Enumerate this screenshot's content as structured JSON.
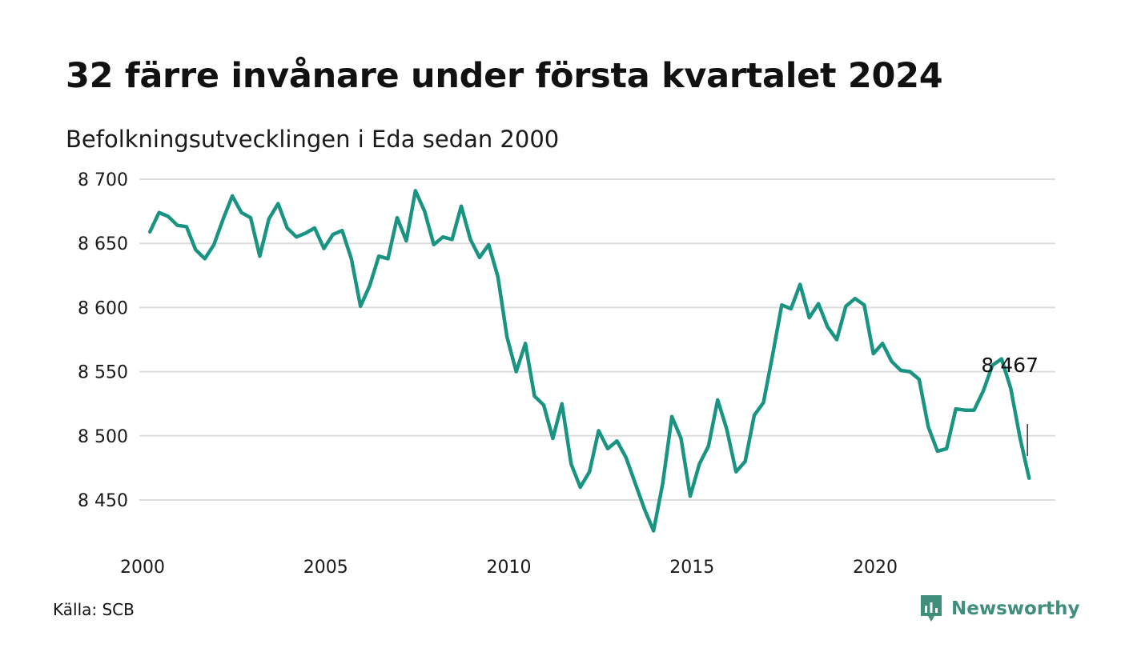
{
  "header": {
    "title": "32 färre invånare under första kvartalet 2024",
    "subtitle": "Befolkningsutvecklingen i Eda sedan 2000"
  },
  "footer": {
    "source": "Källa: SCB",
    "brand": "Newsworthy",
    "brand_icon": "newsworthy-logo-icon"
  },
  "colors": {
    "line": "#1a9482",
    "grid": "#dddddd",
    "brand": "#3f8f7c"
  },
  "chart_data": {
    "type": "line",
    "title": "32 färre invånare under första kvartalet 2024",
    "subtitle": "Befolkningsutvecklingen i Eda sedan 2000",
    "xlabel": "",
    "ylabel": "",
    "xlim": [
      2000,
      2024.3
    ],
    "ylim": [
      8420,
      8700
    ],
    "grid": true,
    "legend": "none",
    "x_ticks": [
      2000,
      2005,
      2010,
      2015,
      2020
    ],
    "x_tick_labels": [
      "2000",
      "2005",
      "2010",
      "2015",
      "2020"
    ],
    "y_ticks": [
      8450,
      8500,
      8550,
      8600,
      8650,
      8700
    ],
    "y_tick_labels": [
      "8 450",
      "8 500",
      "8 550",
      "8 600",
      "8 650",
      "8 700"
    ],
    "series": [
      {
        "color": "#1a9482",
        "x": [
          2000.2,
          2000.45,
          2000.7,
          2000.95,
          2001.2,
          2001.45,
          2001.7,
          2001.95,
          2002.2,
          2002.45,
          2002.7,
          2002.95,
          2003.2,
          2003.45,
          2003.7,
          2003.95,
          2004.2,
          2004.45,
          2004.7,
          2004.95,
          2005.2,
          2005.45,
          2005.7,
          2005.95,
          2006.2,
          2006.45,
          2006.7,
          2006.95,
          2007.2,
          2007.45,
          2007.7,
          2007.95,
          2008.2,
          2008.45,
          2008.7,
          2008.95,
          2009.2,
          2009.45,
          2009.7,
          2009.95,
          2010.2,
          2010.45,
          2010.7,
          2010.95,
          2011.2,
          2011.45,
          2011.7,
          2011.95,
          2012.2,
          2012.45,
          2012.7,
          2012.95,
          2013.2,
          2013.45,
          2013.7,
          2013.95,
          2014.2,
          2014.45,
          2014.7,
          2014.95,
          2015.2,
          2015.45,
          2015.7,
          2015.95,
          2016.2,
          2016.45,
          2016.7,
          2016.95,
          2017.2,
          2017.45,
          2017.7,
          2017.95,
          2018.2,
          2018.45,
          2018.7,
          2018.95,
          2019.2,
          2019.45,
          2019.7,
          2019.95,
          2020.2,
          2020.45,
          2020.7,
          2020.95,
          2021.2,
          2021.45,
          2021.7,
          2021.95,
          2022.2,
          2022.45,
          2022.7,
          2022.95,
          2023.2,
          2023.45,
          2023.7,
          2023.95,
          2024.2
        ],
        "y": [
          8659,
          8674,
          8671,
          8664,
          8663,
          8645,
          8638,
          8649,
          8669,
          8687,
          8674,
          8670,
          8640,
          8669,
          8681,
          8662,
          8655,
          8658,
          8662,
          8646,
          8657,
          8660,
          8638,
          8601,
          8617,
          8640,
          8638,
          8670,
          8652,
          8691,
          8675,
          8649,
          8655,
          8653,
          8679,
          8653,
          8639,
          8649,
          8624,
          8577,
          8550,
          8572,
          8531,
          8524,
          8498,
          8525,
          8478,
          8460,
          8472,
          8504,
          8490,
          8496,
          8483,
          8463,
          8443,
          8426,
          8463,
          8515,
          8498,
          8453,
          8478,
          8492,
          8528,
          8505,
          8472,
          8480,
          8516,
          8526,
          8563,
          8602,
          8599,
          8618,
          8592,
          8603,
          8585,
          8575,
          8601,
          8607,
          8602,
          8564,
          8572,
          8558,
          8551,
          8550,
          8544,
          8507,
          8488,
          8490,
          8521,
          8520,
          8520,
          8535,
          8555,
          8560,
          8537,
          8499,
          8467
        ]
      }
    ],
    "annotations": [
      {
        "text": "8 467",
        "x": 2024.2,
        "y": 8467
      }
    ]
  }
}
